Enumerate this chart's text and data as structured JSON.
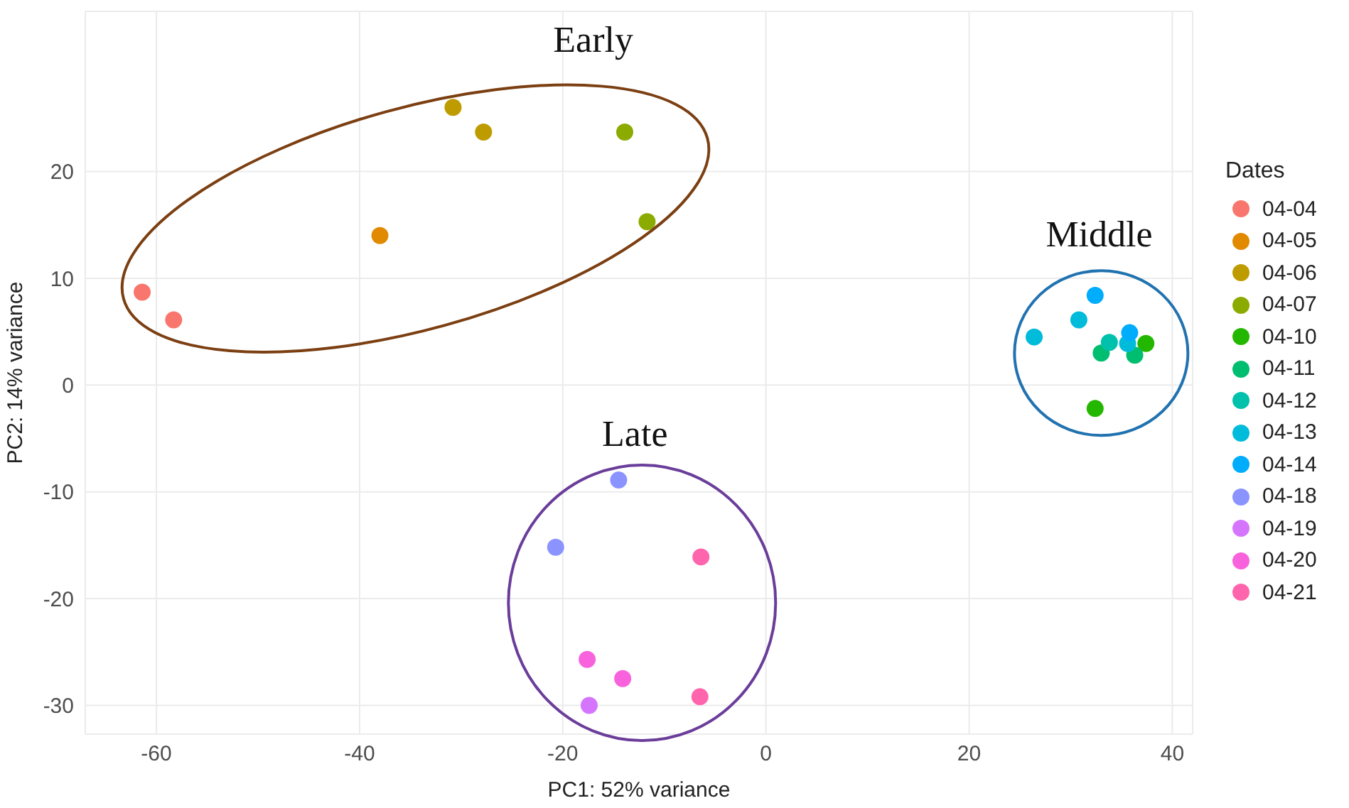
{
  "chart_data": {
    "type": "scatter",
    "xlabel": "PC1: 52% variance",
    "ylabel": "PC2: 14% variance",
    "legend_title": "Dates",
    "legend": "right",
    "grid": true,
    "marker": "circle",
    "xlim": [
      -67,
      42
    ],
    "xticks": [
      -60,
      -40,
      -20,
      0,
      20,
      40
    ],
    "ylim": [
      -32.7,
      35
    ],
    "yticks": [
      -30,
      -20,
      -10,
      0,
      10,
      20
    ],
    "series": [
      {
        "name": "04-04",
        "color": "#F8766D",
        "x": [
          -61.4,
          -58.3
        ],
        "values": [
          8.7,
          6.1
        ]
      },
      {
        "name": "04-05",
        "color": "#E18A00",
        "x": [
          -38.0
        ],
        "values": [
          14.0
        ]
      },
      {
        "name": "04-06",
        "color": "#BE9C00",
        "x": [
          -30.8,
          -27.8
        ],
        "values": [
          26.0,
          23.7
        ]
      },
      {
        "name": "04-07",
        "color": "#8CAB00",
        "x": [
          -13.9,
          -11.7
        ],
        "values": [
          23.7,
          15.3
        ]
      },
      {
        "name": "04-10",
        "color": "#24B700",
        "x": [
          37.4,
          32.4
        ],
        "values": [
          3.9,
          -2.2
        ]
      },
      {
        "name": "04-11",
        "color": "#00BE70",
        "x": [
          33.0,
          36.3
        ],
        "values": [
          3.0,
          2.8
        ]
      },
      {
        "name": "04-12",
        "color": "#00C1AB",
        "x": [
          33.8
        ],
        "values": [
          4.0
        ]
      },
      {
        "name": "04-13",
        "color": "#00BBDA",
        "x": [
          30.8,
          26.4,
          35.6
        ],
        "values": [
          6.1,
          4.5,
          3.9
        ]
      },
      {
        "name": "04-14",
        "color": "#00ACFC",
        "x": [
          32.4,
          35.8
        ],
        "values": [
          8.4,
          4.9
        ]
      },
      {
        "name": "04-18",
        "color": "#8B93FF",
        "x": [
          -14.5,
          -20.7
        ],
        "values": [
          -8.9,
          -15.2
        ]
      },
      {
        "name": "04-19",
        "color": "#D575FE",
        "x": [
          -17.4
        ],
        "values": [
          -30.0
        ]
      },
      {
        "name": "04-20",
        "color": "#F962DD",
        "x": [
          -17.6,
          -14.1
        ],
        "values": [
          -25.7,
          -27.5
        ]
      },
      {
        "name": "04-21",
        "color": "#FF65AC",
        "x": [
          -6.4,
          -6.5
        ],
        "values": [
          -16.1,
          -29.2
        ]
      }
    ],
    "annotations": [
      "Early",
      "Middle",
      "Late"
    ]
  }
}
